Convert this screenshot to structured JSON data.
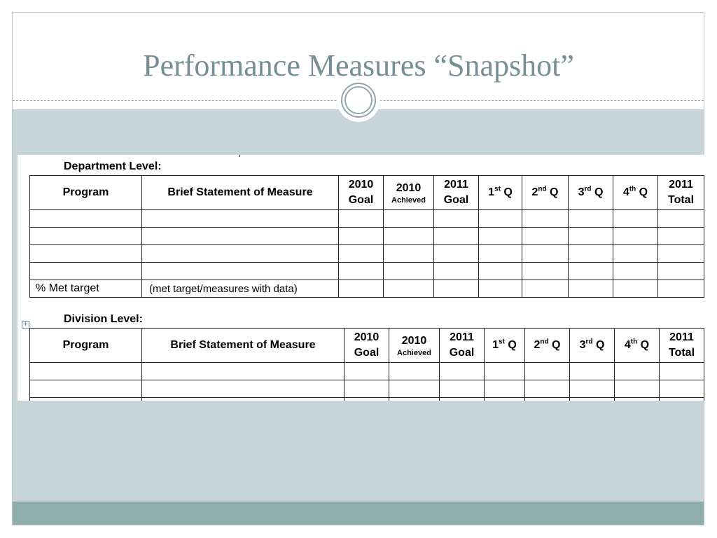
{
  "slide": {
    "title": "Performance Measures “Snapshot”"
  },
  "department": {
    "label": "Department Level:",
    "headers": {
      "program": "Program",
      "brief": "Brief Statement of Measure",
      "goal2010_year": "2010",
      "goal2010_sub": "Goal",
      "ach2010_year": "2010",
      "ach2010_sub": "Achieved",
      "goal2011_year": "2011",
      "goal2011_sub": "Goal",
      "q1_num": "1",
      "q1_sup": "st",
      "q1_q": " Q",
      "q2_num": "2",
      "q2_sup": "nd",
      "q2_q": " Q",
      "q3_num": "3",
      "q3_sup": "rd",
      "q3_q": " Q",
      "q4_num": "4",
      "q4_sup": "th",
      "q4_q": " Q",
      "total_year": "2011",
      "total_sub": "Total"
    },
    "footer": {
      "program": "% Met target",
      "brief": "(met target/measures with data)"
    }
  },
  "division": {
    "label": "Division Level:",
    "headers": {
      "program": "Program",
      "brief": "Brief Statement of Measure",
      "goal2010_year": "2010",
      "goal2010_sub": "Goal",
      "ach2010_year": "2010",
      "ach2010_sub": "Achieved",
      "goal2011_year": "2011",
      "goal2011_sub": "Goal",
      "q1_num": "1",
      "q1_sup": "st",
      "q1_q": " Q",
      "q2_num": "2",
      "q2_sup": "nd",
      "q2_q": " Q",
      "q3_num": "3",
      "q3_sup": "rd",
      "q3_q": " Q",
      "q4_num": "4",
      "q4_sup": "th",
      "q4_q": " Q",
      "total_year": "2011",
      "total_sub": "Total"
    }
  },
  "icons": {
    "table_move_handle": "plus-move-icon",
    "title_ornament": "double-circle-ornament"
  },
  "colors": {
    "title": "#768f94",
    "content_band": "#c7d4d8",
    "footer_band": "#8fadad"
  }
}
